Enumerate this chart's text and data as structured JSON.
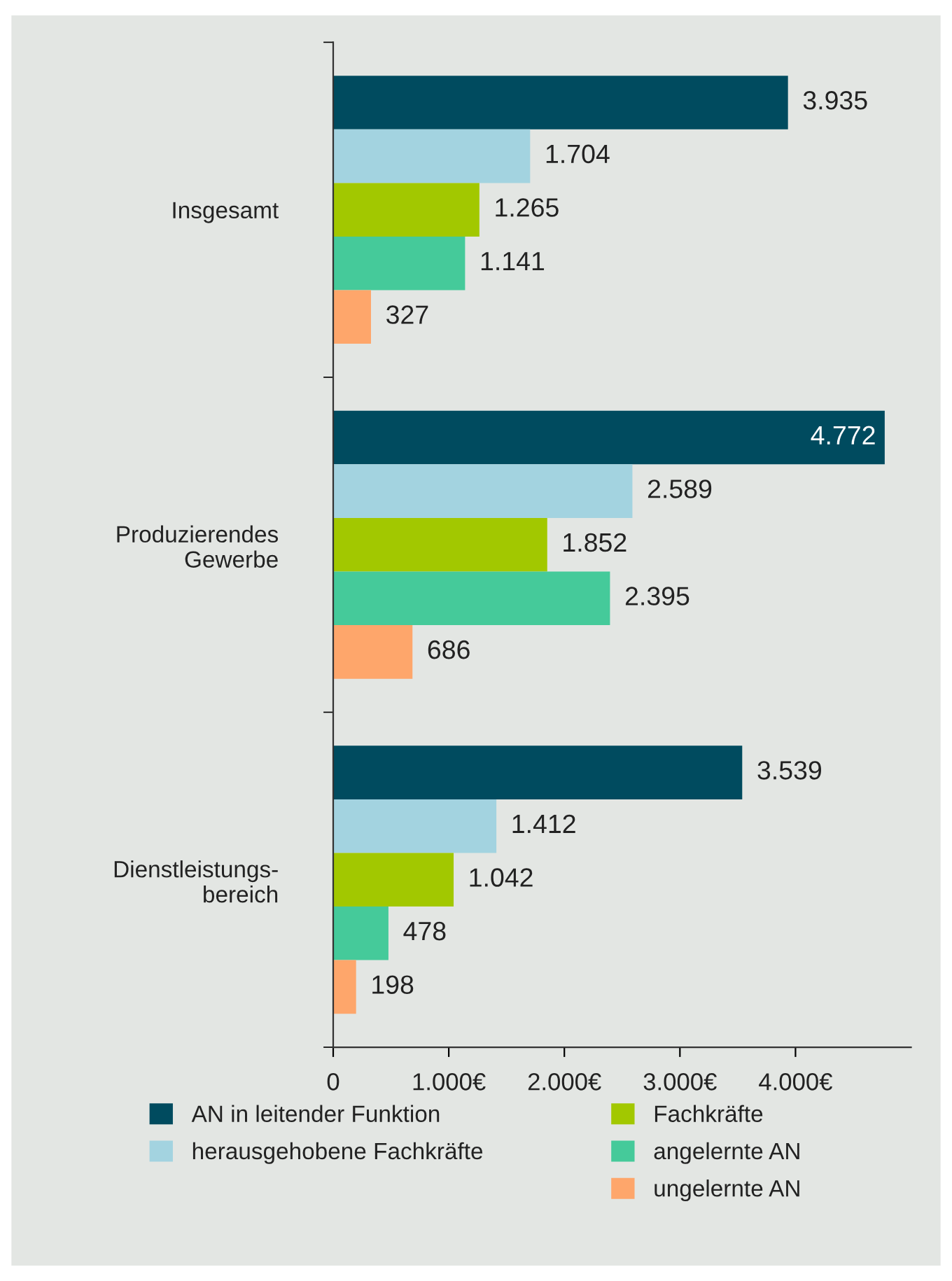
{
  "chart_data": {
    "type": "bar",
    "orientation": "horizontal",
    "categories": [
      "Insgesamt",
      "Produzierendes\nGewerbe",
      "Dienstleistungs-\nbereich"
    ],
    "series": [
      {
        "name": "AN in leitender Funktion",
        "color": "#004b5f",
        "values": [
          3935,
          4772,
          3539
        ],
        "value_labels": [
          "3.935",
          "4.772",
          "3.539"
        ]
      },
      {
        "name": "herausgehobene Fachkräfte",
        "color": "#a3d3e0",
        "values": [
          1704,
          2589,
          1412
        ],
        "value_labels": [
          "1.704",
          "2.589",
          "1.412"
        ]
      },
      {
        "name": "Fachkräfte",
        "color": "#a2c800",
        "values": [
          1265,
          1852,
          1042
        ],
        "value_labels": [
          "1.265",
          "1.852",
          "1.042"
        ]
      },
      {
        "name": "angelernte AN",
        "color": "#45ca9a",
        "values": [
          1141,
          2395,
          478
        ],
        "value_labels": [
          "1.141",
          "2.395",
          "478"
        ]
      },
      {
        "name": "ungelernte AN",
        "color": "#fea66b",
        "values": [
          327,
          686,
          198
        ],
        "value_labels": [
          "327",
          "686",
          "198"
        ]
      }
    ],
    "xlim": [
      0,
      5000
    ],
    "xticks": [
      0,
      {
        "value": 1000,
        "label": "1.000€"
      },
      {
        "value": 2000,
        "label": "2.000€"
      },
      {
        "value": 3000,
        "label": "3.000€"
      },
      {
        "value": 4000,
        "label": "4.000€"
      }
    ],
    "grid": false,
    "legend": "bottom"
  }
}
